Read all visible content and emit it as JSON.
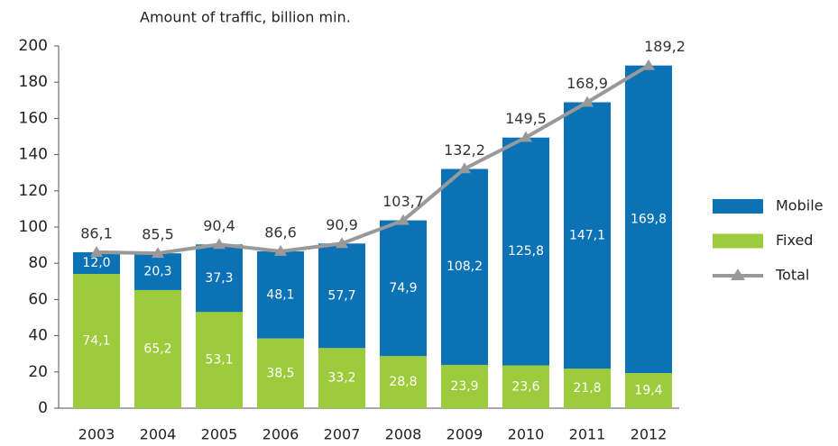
{
  "chart_data": {
    "type": "bar",
    "title": "Amount of traffic, billion min.",
    "categories": [
      "2003",
      "2004",
      "2005",
      "2006",
      "2007",
      "2008",
      "2009",
      "2010",
      "2011",
      "2012"
    ],
    "series": [
      {
        "name": "Mobile",
        "type": "bar",
        "color": "#0b72b6",
        "values": [
          12.0,
          20.3,
          37.3,
          48.1,
          57.7,
          74.9,
          108.2,
          125.8,
          147.1,
          169.8
        ],
        "value_labels": [
          "12,0",
          "20,3",
          "37,3",
          "48,1",
          "57,7",
          "74,9",
          "108,2",
          "125,8",
          "147,1",
          "169,8"
        ]
      },
      {
        "name": "Fixed",
        "type": "bar",
        "color": "#9ccb3b",
        "values": [
          74.1,
          65.2,
          53.1,
          38.5,
          33.2,
          28.8,
          23.9,
          23.6,
          21.8,
          19.4
        ],
        "value_labels": [
          "74,1",
          "65,2",
          "53,1",
          "38,5",
          "33,2",
          "28,8",
          "23,9",
          "23,6",
          "21,8",
          "19,4"
        ]
      },
      {
        "name": "Total",
        "type": "line",
        "color": "#999999",
        "values": [
          86.1,
          85.5,
          90.4,
          86.6,
          90.9,
          103.7,
          132.2,
          149.5,
          168.9,
          189.2
        ],
        "value_labels": [
          "86,1",
          "85,5",
          "90,4",
          "86,6",
          "90,9",
          "103,7",
          "132,2",
          "149,5",
          "168,9",
          "189,2"
        ]
      }
    ],
    "ylim": [
      0,
      200
    ],
    "yticks": [
      0,
      20,
      40,
      60,
      80,
      100,
      120,
      140,
      160,
      180,
      200
    ],
    "legend": "right"
  }
}
